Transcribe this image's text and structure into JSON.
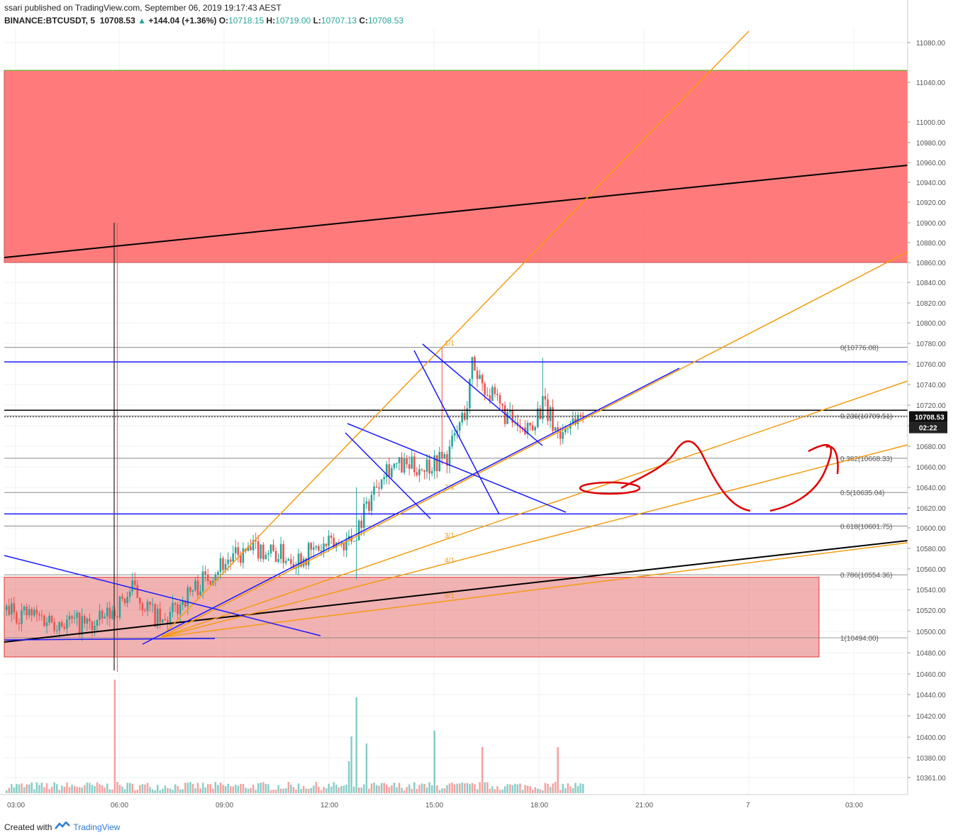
{
  "header": {
    "published": "ssari published on TradingView.com, September 06, 2019 19:17:43 AEST",
    "symbol": "BINANCE:BTCUSDT, 5",
    "last": "10708.53",
    "change": "+144.04 (+1.36%)",
    "o_label": "O:",
    "o_value": "10718.15",
    "h_label": "H:",
    "h_value": "10719.00",
    "l_label": "L:",
    "l_value": "10707.13",
    "c_label": "C:",
    "c_value": "10708.53"
  },
  "footer": {
    "created_with": "Created with",
    "brand": "TradingView"
  },
  "colors": {
    "up": "#26a69a",
    "down": "#ef5350",
    "resistance": "#ff5a5a",
    "support": "#e57373",
    "fib": "#f39c12",
    "trend": "#1a1aff",
    "annotation": "#e00000"
  },
  "chart_data": {
    "type": "candlestick",
    "y_axis": {
      "ticks": [
        "11080.00",
        "11040.00",
        "11000.00",
        "10980.00",
        "10960.00",
        "10940.00",
        "10920.00",
        "10900.00",
        "10880.00",
        "10860.00",
        "10840.00",
        "10820.00",
        "10800.00",
        "10780.00",
        "10760.00",
        "10740.00",
        "10720.00",
        "10700.00",
        "10680.00",
        "10660.00",
        "10640.00",
        "10620.00",
        "10600.00",
        "10580.00",
        "10560.00",
        "10540.00",
        "10520.00",
        "10500.00",
        "10480.00",
        "10460.00",
        "10440.00",
        "10420.00",
        "10400.00",
        "10380.00",
        "10361.00"
      ],
      "last_price_label": "10708.53",
      "countdown_label": "02:22"
    },
    "x_axis": {
      "ticks": [
        "03:00",
        "06:00",
        "09:00",
        "12:00",
        "15:00",
        "18:00",
        "21:00",
        "7",
        "03:00"
      ]
    },
    "fib_levels": [
      {
        "label": "0(10776.08)",
        "value": 10776.08
      },
      {
        "label": "0.236(10709.51)",
        "value": 10709.51
      },
      {
        "label": "0.382(10668.33)",
        "value": 10668.33
      },
      {
        "label": "0.5(10635.04)",
        "value": 10635.04
      },
      {
        "label": "0.618(10601.75)",
        "value": 10601.75
      },
      {
        "label": "0.786(10554.36)",
        "value": 10554.36
      },
      {
        "label": "1(10494.00)",
        "value": 10494.0
      }
    ],
    "fan_labels": [
      "1/1",
      "2/1",
      "3/1",
      "4/1",
      "8/1"
    ],
    "zones": [
      {
        "name": "resistance",
        "from": 10860,
        "to": 11052
      },
      {
        "name": "support",
        "from": 10476,
        "to": 10552
      }
    ],
    "horizontal_lines": [
      10762,
      10715,
      10614
    ],
    "price_line": 10708.53,
    "candles_summary": {
      "start": "03:00",
      "end": "19:15",
      "low": 10472,
      "high": 10776.08
    }
  }
}
